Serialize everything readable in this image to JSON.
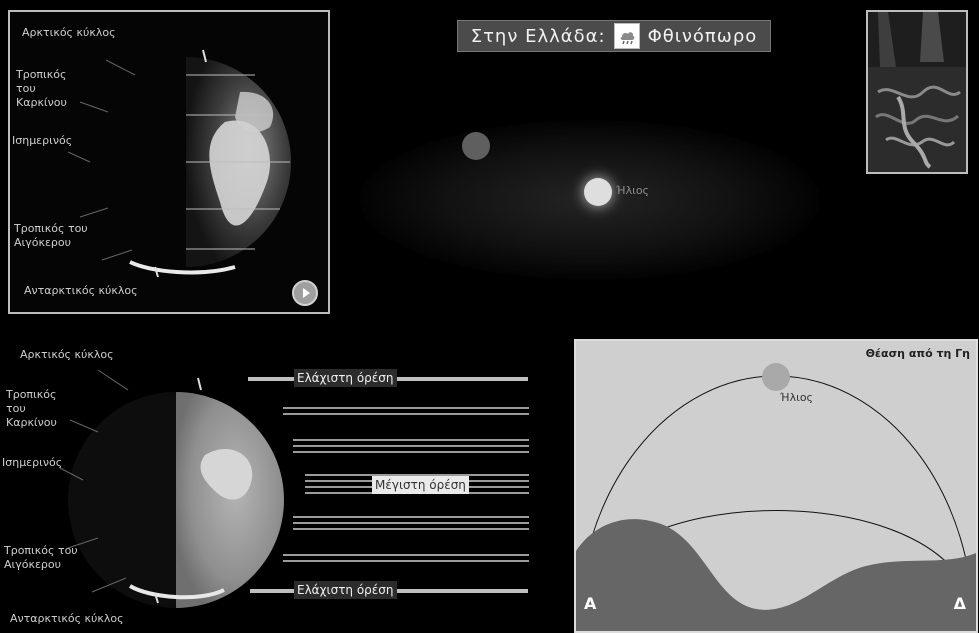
{
  "top_left_panel": {
    "labels": [
      "Αρκτικός κύκλος",
      "Τροπικός του Καρκίνου",
      "Ισημερινός",
      "Τροπικός του Αιγόκερου",
      "Ανταρκτικός κύκλος"
    ],
    "play_button": "play-button"
  },
  "season_bar": {
    "prefix": "Στην Ελλάδα:",
    "season": "Φθινόπωρο",
    "icon": "weather-cloud-rain-icon"
  },
  "space_scene": {
    "sun_label": "Ήλιος"
  },
  "bottom_left_panel": {
    "labels": [
      "Αρκτικός κύκλος",
      "Τροπικός του Καρκίνου",
      "Ισημερινός",
      "Τροπικός του Αιγόκερου",
      "Ανταρκτικός κύκλος"
    ],
    "min_top": "Ελάχιστη όρέση",
    "max": "Μέγιστη όρέση",
    "min_bottom": "Ελάχιστη όρέση"
  },
  "view_from_earth": {
    "title": "Θέαση από τη Γη",
    "sun_label": "Ήλιος",
    "west": "Α",
    "east": "Δ"
  }
}
